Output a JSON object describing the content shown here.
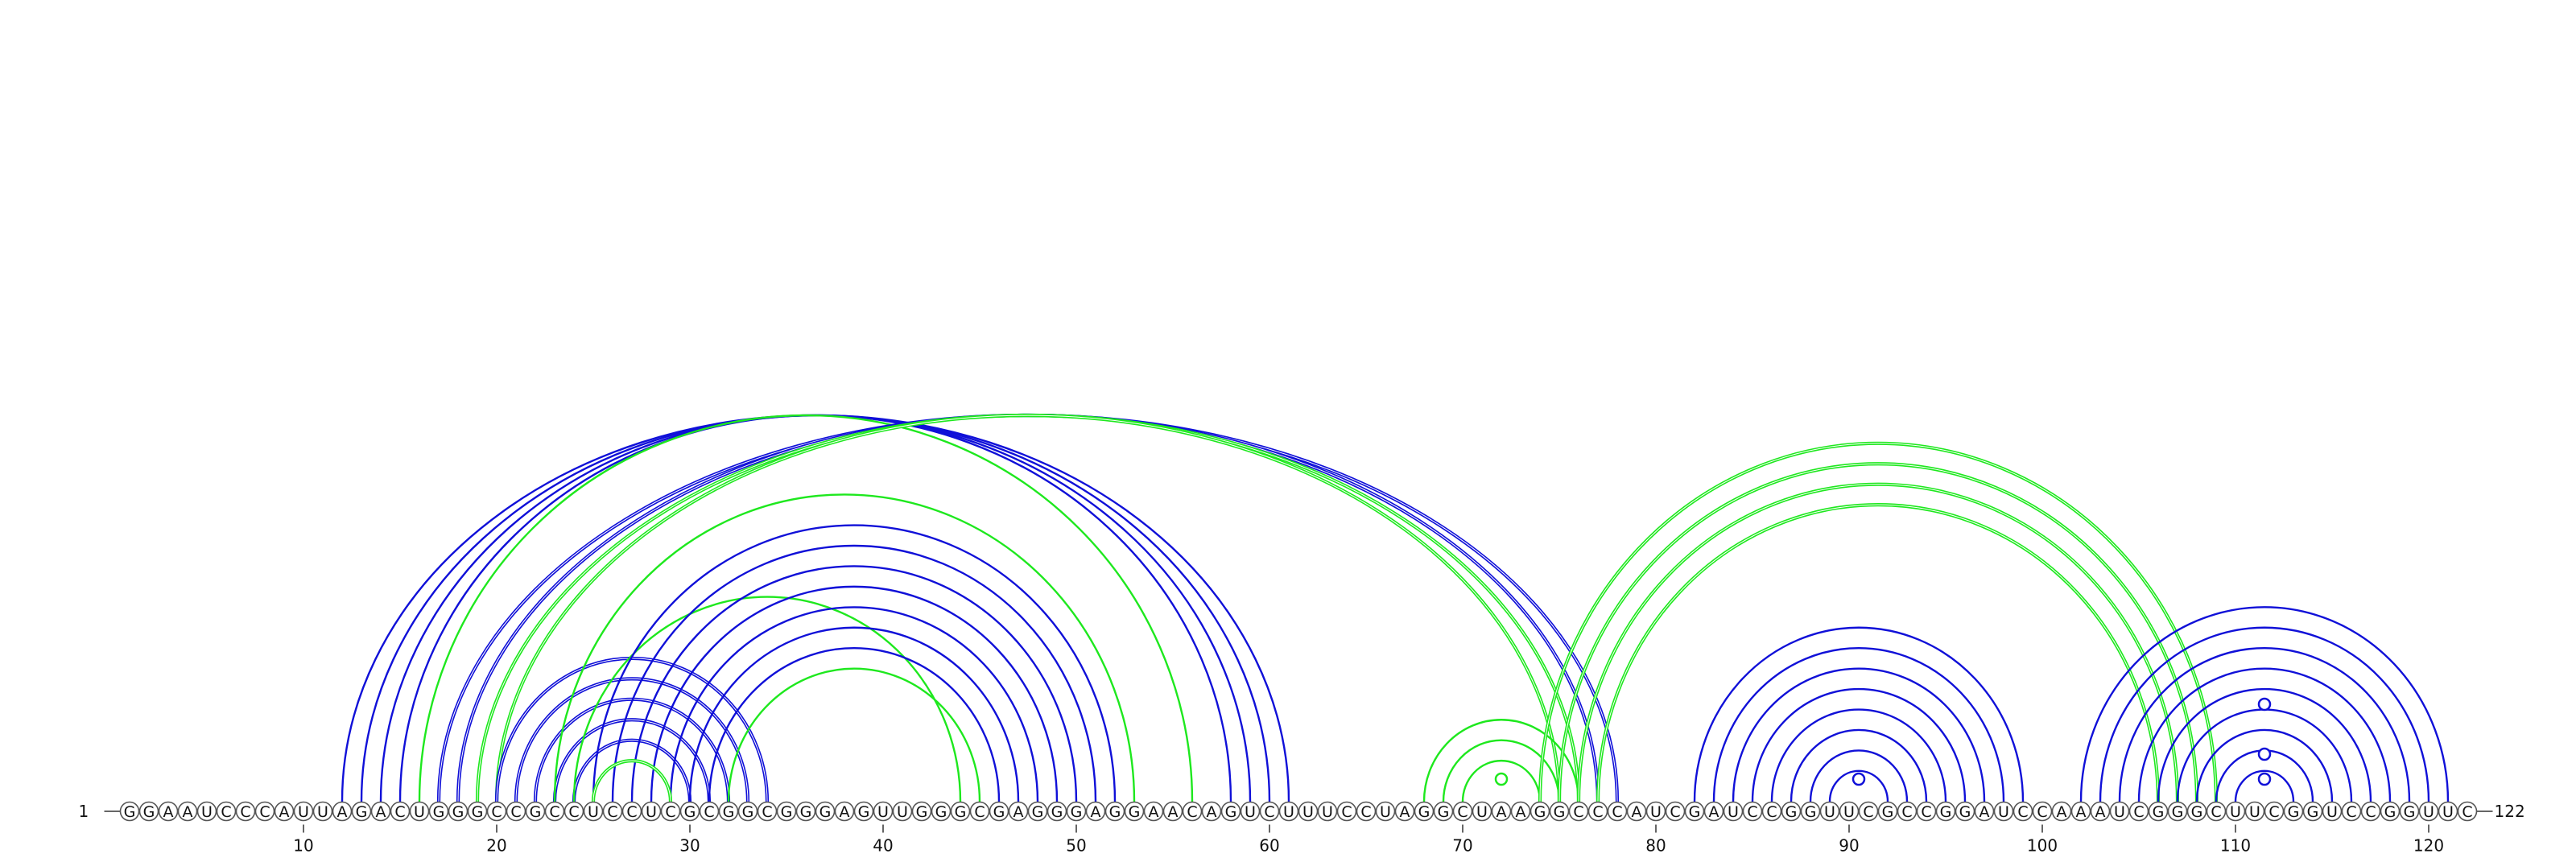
{
  "sequence": "GGAAUCCCAUUAGACUGGGCCGCCUCCUCGCGGCGGGAGUUGGGCGAGGGAGGAACAGUCUUUCCUAGGCUAAGGCCCAUCGAUCCGGUUCGCCGGAUCCAAAUCGGGCUUCGGUCCGGUUC",
  "start_label": "1",
  "end_label": "122",
  "ticks": [
    10,
    20,
    30,
    40,
    50,
    60,
    70,
    80,
    90,
    100,
    110,
    120
  ],
  "colors": {
    "blue": "#1010d8",
    "green": "#1ee81e"
  },
  "pairs": [
    {
      "i": 12,
      "j": 61,
      "color": "blue",
      "weight": "thin"
    },
    {
      "i": 13,
      "j": 60,
      "color": "blue",
      "weight": "thin"
    },
    {
      "i": 14,
      "j": 59,
      "color": "blue",
      "weight": "thin"
    },
    {
      "i": 15,
      "j": 58,
      "color": "blue",
      "weight": "thin"
    },
    {
      "i": 16,
      "j": 56,
      "color": "green",
      "weight": "thin"
    },
    {
      "i": 17,
      "j": 78,
      "color": "blue",
      "weight": "thick"
    },
    {
      "i": 18,
      "j": 77,
      "color": "blue",
      "weight": "thick"
    },
    {
      "i": 19,
      "j": 76,
      "color": "green",
      "weight": "thick"
    },
    {
      "i": 20,
      "j": 75,
      "color": "green",
      "weight": "thick"
    },
    {
      "i": 20,
      "j": 34,
      "color": "blue",
      "weight": "thick"
    },
    {
      "i": 21,
      "j": 33,
      "color": "blue",
      "weight": "thick"
    },
    {
      "i": 22,
      "j": 32,
      "color": "blue",
      "weight": "thick"
    },
    {
      "i": 23,
      "j": 31,
      "color": "blue",
      "weight": "thick"
    },
    {
      "i": 24,
      "j": 30,
      "color": "blue",
      "weight": "thick"
    },
    {
      "i": 23,
      "j": 53,
      "color": "green",
      "weight": "thin"
    },
    {
      "i": 24,
      "j": 44,
      "color": "green",
      "weight": "thin"
    },
    {
      "i": 25,
      "j": 52,
      "color": "blue",
      "weight": "thin"
    },
    {
      "i": 26,
      "j": 51,
      "color": "blue",
      "weight": "thin"
    },
    {
      "i": 27,
      "j": 50,
      "color": "blue",
      "weight": "thin"
    },
    {
      "i": 28,
      "j": 49,
      "color": "blue",
      "weight": "thin"
    },
    {
      "i": 29,
      "j": 48,
      "color": "blue",
      "weight": "thin"
    },
    {
      "i": 30,
      "j": 47,
      "color": "blue",
      "weight": "thin"
    },
    {
      "i": 31,
      "j": 46,
      "color": "blue",
      "weight": "thin"
    },
    {
      "i": 32,
      "j": 45,
      "color": "green",
      "weight": "thin"
    },
    {
      "i": 25,
      "j": 29,
      "color": "green",
      "weight": "thick"
    },
    {
      "i": 68,
      "j": 76,
      "color": "green",
      "weight": "thin"
    },
    {
      "i": 69,
      "j": 75,
      "color": "green",
      "weight": "thin"
    },
    {
      "i": 70,
      "j": 74,
      "color": "green",
      "weight": "thin"
    },
    {
      "i": 74,
      "j": 109,
      "color": "green",
      "weight": "thick"
    },
    {
      "i": 75,
      "j": 108,
      "color": "green",
      "weight": "thick"
    },
    {
      "i": 76,
      "j": 107,
      "color": "green",
      "weight": "thick"
    },
    {
      "i": 77,
      "j": 106,
      "color": "green",
      "weight": "thick"
    },
    {
      "i": 82,
      "j": 99,
      "color": "blue",
      "weight": "thin"
    },
    {
      "i": 83,
      "j": 98,
      "color": "blue",
      "weight": "thin"
    },
    {
      "i": 84,
      "j": 97,
      "color": "blue",
      "weight": "thin"
    },
    {
      "i": 85,
      "j": 96,
      "color": "blue",
      "weight": "thin"
    },
    {
      "i": 86,
      "j": 95,
      "color": "blue",
      "weight": "thin"
    },
    {
      "i": 87,
      "j": 94,
      "color": "blue",
      "weight": "thin"
    },
    {
      "i": 88,
      "j": 93,
      "color": "blue",
      "weight": "thin"
    },
    {
      "i": 89,
      "j": 92,
      "color": "blue",
      "weight": "thin"
    },
    {
      "i": 102,
      "j": 121,
      "color": "blue",
      "weight": "thin"
    },
    {
      "i": 103,
      "j": 120,
      "color": "blue",
      "weight": "thin"
    },
    {
      "i": 104,
      "j": 119,
      "color": "blue",
      "weight": "thin"
    },
    {
      "i": 105,
      "j": 118,
      "color": "blue",
      "weight": "thin"
    },
    {
      "i": 106,
      "j": 117,
      "color": "blue",
      "weight": "thin"
    },
    {
      "i": 107,
      "j": 116,
      "color": "blue",
      "weight": "thin"
    },
    {
      "i": 108,
      "j": 115,
      "color": "blue",
      "weight": "thin"
    },
    {
      "i": 109,
      "j": 114,
      "color": "blue",
      "weight": "thin"
    },
    {
      "i": 110,
      "j": 113,
      "color": "blue",
      "weight": "thin"
    }
  ],
  "loop_markers": [
    {
      "position": 90.5,
      "level": 1,
      "color": "blue"
    },
    {
      "position": 72,
      "level": 1,
      "color": "green"
    },
    {
      "position": 111.5,
      "level": 1,
      "color": "blue"
    },
    {
      "position": 111.5,
      "level": 2,
      "color": "blue"
    },
    {
      "position": 111.5,
      "level": 4,
      "color": "blue"
    }
  ]
}
